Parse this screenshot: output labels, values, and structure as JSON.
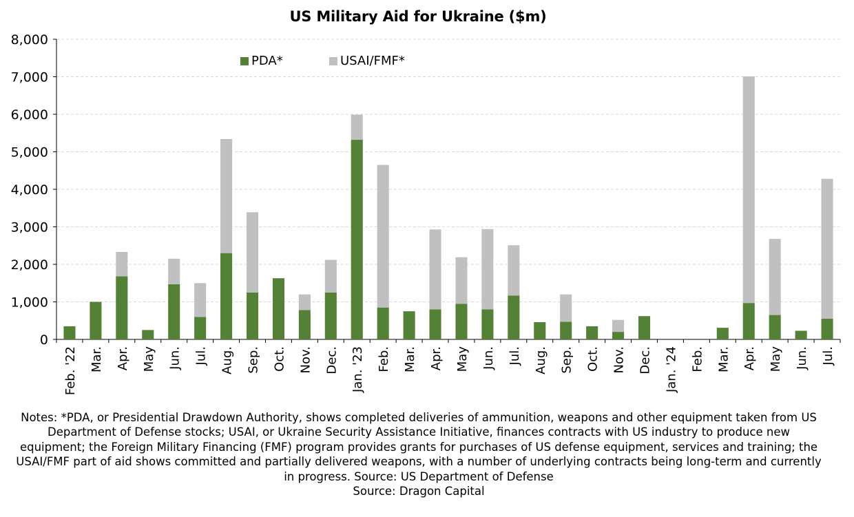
{
  "chart_data": {
    "type": "bar",
    "stacked": true,
    "title": "US Military Aid for Ukraine ($m)",
    "xlabel": "",
    "ylabel": "",
    "ylim": [
      0,
      8000
    ],
    "yticks": [
      0,
      1000,
      2000,
      3000,
      4000,
      5000,
      6000,
      7000,
      8000
    ],
    "ytick_labels": [
      "0",
      "1,000",
      "2,000",
      "3,000",
      "4,000",
      "5,000",
      "6,000",
      "7,000",
      "8,000"
    ],
    "grid": true,
    "legend_position": "top-left",
    "categories": [
      "Feb. '22",
      "Mar.",
      "Apr.",
      "May",
      "Jun.",
      "Jul.",
      "Aug.",
      "Sep.",
      "Oct.",
      "Nov.",
      "Dec.",
      "Jan. '23",
      "Feb.",
      "Mar.",
      "Apr.",
      "May",
      "Jun.",
      "Jul.",
      "Aug.",
      "Sep.",
      "Oct.",
      "Nov.",
      "Dec.",
      "Jan. '24",
      "Feb.",
      "Mar.",
      "Apr.",
      "May",
      "Jun.",
      "Jul."
    ],
    "series": [
      {
        "name": "PDA*",
        "color": "#538135",
        "values": [
          350,
          1000,
          1680,
          250,
          1470,
          600,
          2300,
          1250,
          1630,
          780,
          1250,
          5320,
          850,
          750,
          800,
          950,
          800,
          1170,
          460,
          470,
          350,
          200,
          620,
          0,
          0,
          310,
          970,
          650,
          230,
          550
        ]
      },
      {
        "name": "USAI/FMF*",
        "color": "#c0c0c0",
        "values": [
          0,
          0,
          650,
          0,
          680,
          900,
          3040,
          2140,
          0,
          420,
          870,
          670,
          3800,
          0,
          2130,
          1240,
          2140,
          1340,
          0,
          730,
          0,
          320,
          0,
          0,
          0,
          0,
          6040,
          2030,
          0,
          3730
        ]
      }
    ]
  },
  "notes": {
    "text": "Notes: *PDA, or Presidential Drawdown Authority, shows completed deliveries of ammunition, weapons and other equipment taken from US Department of Defense stocks; USAI, or Ukraine Security Assistance Initiative, finances contracts with US industry to produce new equipment; the Foreign Military Financing (FMF) program provides grants for purchases of US defense equipment, services and training; the USAI/FMF part of aid shows committed and partially delivered weapons, with a number of underlying contracts being long-term and currently in progress. Source: US Department of Defense",
    "source": "Source: Dragon Capital"
  }
}
